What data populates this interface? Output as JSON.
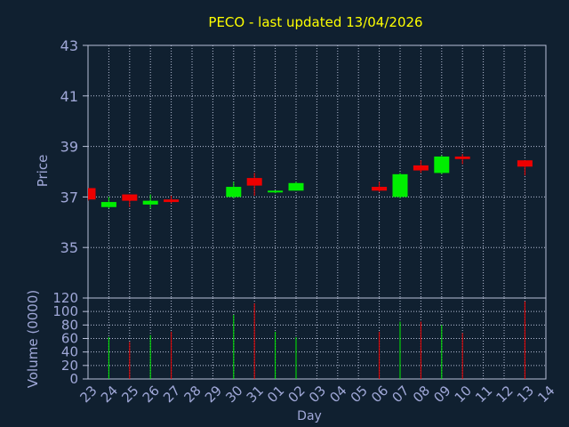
{
  "chart_data": {
    "type": "candlestick",
    "title": "PECO - last updated 13/04/2026",
    "xlabel": "Day",
    "ylabel_price": "Price",
    "ylabel_volume": "Volume (0000)",
    "price_ylim": [
      33,
      43
    ],
    "price_ticks": [
      35,
      37,
      39,
      41,
      43
    ],
    "volume_ylim": [
      0,
      120
    ],
    "volume_ticks": [
      0,
      20,
      40,
      60,
      80,
      100,
      120
    ],
    "grid": true,
    "x_ticks": [
      "23",
      "24",
      "25",
      "26",
      "27",
      "28",
      "29",
      "30",
      "31",
      "01",
      "02",
      "03",
      "04",
      "05",
      "06",
      "07",
      "08",
      "09",
      "10",
      "11",
      "12",
      "13",
      "14"
    ],
    "candles": [
      {
        "day": "23",
        "open": 37.35,
        "high": 37.35,
        "low": 36.85,
        "close": 36.9
      },
      {
        "day": "24",
        "open": 36.6,
        "high": 37.0,
        "low": 36.55,
        "close": 36.8
      },
      {
        "day": "25",
        "open": 37.1,
        "high": 37.1,
        "low": 36.6,
        "close": 36.85
      },
      {
        "day": "26",
        "open": 36.7,
        "high": 37.1,
        "low": 36.55,
        "close": 36.85
      },
      {
        "day": "27",
        "open": 36.9,
        "high": 37.05,
        "low": 36.75,
        "close": 36.8
      },
      {
        "day": "30",
        "open": 37.0,
        "high": 37.6,
        "low": 36.95,
        "close": 37.4
      },
      {
        "day": "31",
        "open": 37.75,
        "high": 37.95,
        "low": 37.05,
        "close": 37.45
      },
      {
        "day": "01",
        "open": 37.2,
        "high": 37.25,
        "low": 37.15,
        "close": 37.25
      },
      {
        "day": "02",
        "open": 37.25,
        "high": 37.6,
        "low": 37.25,
        "close": 37.55
      },
      {
        "day": "06",
        "open": 37.4,
        "high": 37.6,
        "low": 37.2,
        "close": 37.25
      },
      {
        "day": "07",
        "open": 37.0,
        "high": 37.95,
        "low": 36.95,
        "close": 37.9
      },
      {
        "day": "08",
        "open": 38.25,
        "high": 38.45,
        "low": 37.95,
        "close": 38.05
      },
      {
        "day": "09",
        "open": 37.95,
        "high": 38.65,
        "low": 37.9,
        "close": 38.6
      },
      {
        "day": "10",
        "open": 38.6,
        "high": 38.7,
        "low": 38.3,
        "close": 38.5
      },
      {
        "day": "13",
        "open": 38.45,
        "high": 38.45,
        "low": 37.85,
        "close": 38.2
      }
    ],
    "volumes": [
      {
        "day": "24",
        "value": 62,
        "dir": "up"
      },
      {
        "day": "25",
        "value": 55,
        "dir": "down"
      },
      {
        "day": "26",
        "value": 65,
        "dir": "up"
      },
      {
        "day": "27",
        "value": 70,
        "dir": "down"
      },
      {
        "day": "30",
        "value": 95,
        "dir": "up"
      },
      {
        "day": "31",
        "value": 112,
        "dir": "down"
      },
      {
        "day": "01",
        "value": 70,
        "dir": "up"
      },
      {
        "day": "02",
        "value": 62,
        "dir": "up"
      },
      {
        "day": "06",
        "value": 70,
        "dir": "down"
      },
      {
        "day": "07",
        "value": 85,
        "dir": "up"
      },
      {
        "day": "08",
        "value": 85,
        "dir": "down"
      },
      {
        "day": "09",
        "value": 80,
        "dir": "up"
      },
      {
        "day": "10",
        "value": 68,
        "dir": "down"
      },
      {
        "day": "13",
        "value": 115,
        "dir": "down"
      }
    ],
    "colors": {
      "background": "#102030",
      "title": "#ffff00",
      "axis_text": "#a0a8d8",
      "grid": "#b8c0d8",
      "up": "#00ee00",
      "down": "#ee0000"
    }
  }
}
